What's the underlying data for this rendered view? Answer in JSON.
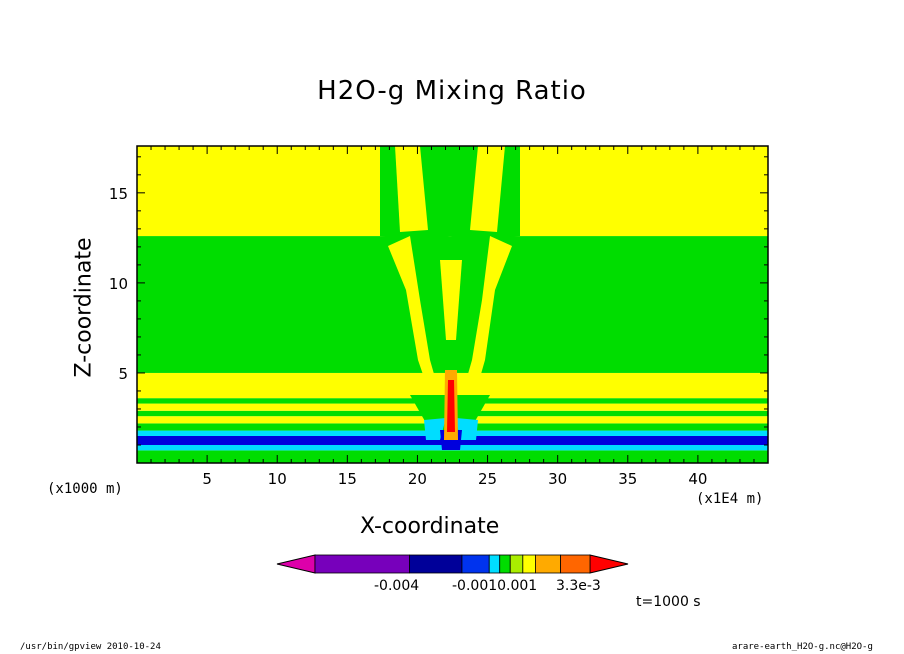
{
  "chart_data": {
    "type": "heatmap",
    "title": "H2O-g Mixing Ratio",
    "xlabel": "X-coordinate",
    "ylabel": "Z-coordinate",
    "x_unit_left": "(x1000 m)",
    "x_unit_right": "(x1E4 m)",
    "xlim": [
      0,
      45
    ],
    "ylim": [
      0,
      17.6
    ],
    "x_ticks": [
      "5",
      "10",
      "15",
      "20",
      "25",
      "30",
      "35",
      "40"
    ],
    "x_tick_values": [
      5,
      10,
      15,
      20,
      25,
      30,
      35,
      40
    ],
    "y_ticks": [
      "5",
      "10",
      "15"
    ],
    "y_tick_values": [
      5,
      10,
      15
    ],
    "horizontal_bands": [
      {
        "z0": 0,
        "z1": 0.7,
        "color": "#00dd00"
      },
      {
        "z0": 0.7,
        "z1": 1.0,
        "color": "#00ddff"
      },
      {
        "z0": 1.0,
        "z1": 1.5,
        "color": "#0000dd"
      },
      {
        "z0": 1.5,
        "z1": 1.8,
        "color": "#00ddff"
      },
      {
        "z0": 1.8,
        "z1": 2.2,
        "color": "#00dd00"
      },
      {
        "z0": 2.2,
        "z1": 2.6,
        "color": "#ffff00"
      },
      {
        "z0": 2.6,
        "z1": 2.9,
        "color": "#00dd00"
      },
      {
        "z0": 2.9,
        "z1": 3.3,
        "color": "#ffff00"
      },
      {
        "z0": 3.3,
        "z1": 3.6,
        "color": "#00dd00"
      },
      {
        "z0": 3.6,
        "z1": 5.0,
        "color": "#ffff00"
      },
      {
        "z0": 5.0,
        "z1": 12.6,
        "color": "#00dd00"
      },
      {
        "z0": 12.6,
        "z1": 17.6,
        "color": "#ffff00"
      }
    ],
    "colorbar": {
      "colors": [
        "#dd00aa",
        "#7700bb",
        "#000099",
        "#0033ee",
        "#00ddff",
        "#00dd00",
        "#aaee00",
        "#ffff00",
        "#ffaa00",
        "#ff6600",
        "#ff0000"
      ],
      "labels": [
        "-0.004",
        "-0.0010.001",
        "3.3e-3"
      ]
    },
    "time": "t=1000 s"
  },
  "footer": {
    "left": "/usr/bin/gpview   2010-10-24",
    "right": "arare-earth_H2O-g.nc@H2O-g"
  }
}
